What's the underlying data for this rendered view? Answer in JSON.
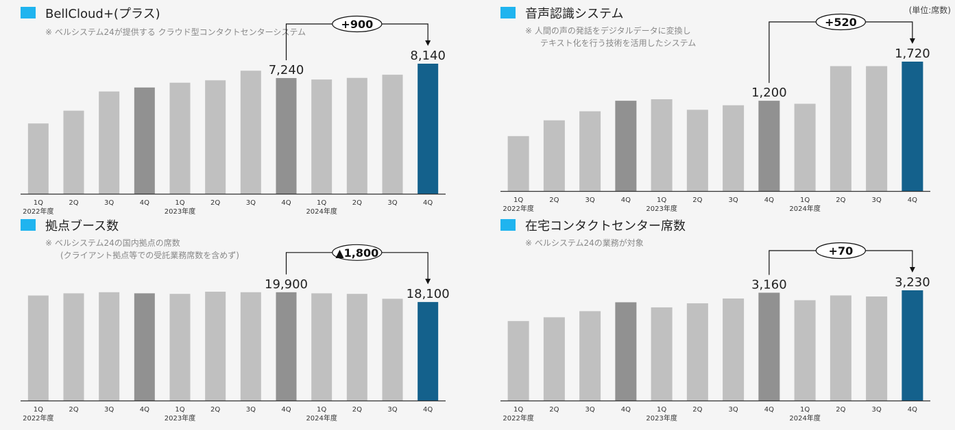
{
  "unit_note": "(単位:席数)",
  "colors": {
    "accent": "#1fb4ef",
    "bar": "#c0c0c0",
    "bar_q4": "#919191",
    "bar_latest": "#14618c",
    "axis": "#333333"
  },
  "chart_data": [
    {
      "type": "bar",
      "title": "BellCloud+(プラス)",
      "notes": [
        "※ ベルシステム24が提供する クラウド型コンタクトセンターシステム"
      ],
      "categories": [
        "1Q",
        "2Q",
        "3Q",
        "4Q",
        "1Q",
        "2Q",
        "3Q",
        "4Q",
        "1Q",
        "2Q",
        "3Q",
        "4Q"
      ],
      "year_labels": [
        {
          "index": 0,
          "text": "2022年度"
        },
        {
          "index": 4,
          "text": "2023年度"
        },
        {
          "index": 8,
          "text": "2024年度"
        }
      ],
      "values": [
        4400,
        5200,
        6400,
        6650,
        6950,
        7100,
        7700,
        7240,
        7150,
        7250,
        7450,
        8140
      ],
      "data_labels": [
        {
          "index": 7,
          "text": "7,240"
        },
        {
          "index": 11,
          "text": "8,140"
        }
      ],
      "change": {
        "from": 7,
        "to": 11,
        "text": "+900"
      },
      "ylim": [
        0,
        9400
      ]
    },
    {
      "type": "bar",
      "title": "音声認識システム",
      "notes": [
        "※ 人間の声の発話をデジタルデータに変換し",
        "テキスト化を行う技術を活用したシステム"
      ],
      "categories": [
        "1Q",
        "2Q",
        "3Q",
        "4Q",
        "1Q",
        "2Q",
        "3Q",
        "4Q",
        "1Q",
        "2Q",
        "3Q",
        "4Q"
      ],
      "year_labels": [
        {
          "index": 0,
          "text": "2022年度"
        },
        {
          "index": 4,
          "text": "2023年度"
        },
        {
          "index": 8,
          "text": "2024年度"
        }
      ],
      "values": [
        730,
        940,
        1060,
        1200,
        1220,
        1080,
        1140,
        1200,
        1160,
        1660,
        1660,
        1720
      ],
      "data_labels": [
        {
          "index": 7,
          "text": "1,200"
        },
        {
          "index": 11,
          "text": "1,720"
        }
      ],
      "change": {
        "from": 7,
        "to": 11,
        "text": "+520"
      },
      "ylim": [
        0,
        2100
      ]
    },
    {
      "type": "bar",
      "title": "拠点ブース数",
      "notes": [
        "※ ベルシステム24の国内拠点の席数",
        "(クライアント拠点等での受託業務席数を含めず)"
      ],
      "categories": [
        "1Q",
        "2Q",
        "3Q",
        "4Q",
        "1Q",
        "2Q",
        "3Q",
        "4Q",
        "1Q",
        "2Q",
        "3Q",
        "4Q"
      ],
      "year_labels": [
        {
          "index": 0,
          "text": "2022年度"
        },
        {
          "index": 4,
          "text": "2023年度"
        },
        {
          "index": 8,
          "text": "2024年度"
        }
      ],
      "values": [
        19300,
        19700,
        19900,
        19700,
        19600,
        20000,
        19900,
        19900,
        19700,
        19600,
        18700,
        18100
      ],
      "data_labels": [
        {
          "index": 7,
          "text": "19,900"
        },
        {
          "index": 11,
          "text": "18,100"
        }
      ],
      "change": {
        "from": 7,
        "to": 11,
        "text": "▲1,800"
      },
      "ylim": [
        0,
        23800
      ]
    },
    {
      "type": "bar",
      "title": "在宅コンタクトセンター席数",
      "notes": [
        "※ ベルシステム24の業務が対象"
      ],
      "categories": [
        "1Q",
        "2Q",
        "3Q",
        "4Q",
        "1Q",
        "2Q",
        "3Q",
        "4Q",
        "1Q",
        "2Q",
        "3Q",
        "4Q"
      ],
      "year_labels": [
        {
          "index": 0,
          "text": "2022年度"
        },
        {
          "index": 4,
          "text": "2023年度"
        },
        {
          "index": 8,
          "text": "2024年度"
        }
      ],
      "values": [
        2330,
        2440,
        2620,
        2880,
        2730,
        2850,
        2990,
        3160,
        2940,
        3080,
        3050,
        3230
      ],
      "data_labels": [
        {
          "index": 7,
          "text": "3,160"
        },
        {
          "index": 11,
          "text": "3,230"
        }
      ],
      "change": {
        "from": 7,
        "to": 11,
        "text": "+70"
      },
      "ylim": [
        0,
        3900
      ]
    }
  ]
}
